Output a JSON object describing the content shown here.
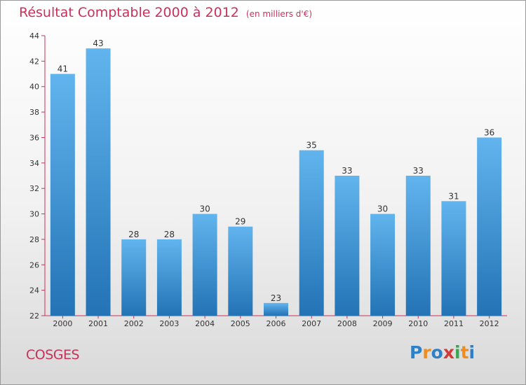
{
  "title": "Résultat Comptable 2000 à 2012",
  "subtitle": "(en milliers d'€)",
  "place": "COSGES",
  "logo": {
    "letters": [
      "P",
      "r",
      "o",
      "x",
      "i",
      "t",
      "i"
    ],
    "colors": [
      "#2d7fc8",
      "#f08c1e",
      "#2d7fc8",
      "#d23a3a",
      "#3aa655",
      "#f08c1e",
      "#2d7fc8"
    ]
  },
  "colors": {
    "bar_top": "#62b4ee",
    "bar_bottom": "#2373b5",
    "axis": "#c8325a",
    "title": "#c8325a"
  },
  "chart_data": {
    "type": "bar",
    "categories": [
      "2000",
      "2001",
      "2002",
      "2003",
      "2004",
      "2005",
      "2006",
      "2007",
      "2008",
      "2009",
      "2010",
      "2011",
      "2012"
    ],
    "values": [
      41,
      43,
      28,
      28,
      30,
      29,
      23,
      35,
      33,
      30,
      33,
      31,
      36
    ],
    "title": "Résultat Comptable 2000 à 2012",
    "subtitle": "(en milliers d'€)",
    "xlabel": "",
    "ylabel": "",
    "ylim": [
      22,
      44
    ],
    "yticks": [
      22,
      24,
      26,
      28,
      30,
      32,
      34,
      36,
      38,
      40,
      42,
      44
    ],
    "grid": false,
    "legend": "none"
  }
}
